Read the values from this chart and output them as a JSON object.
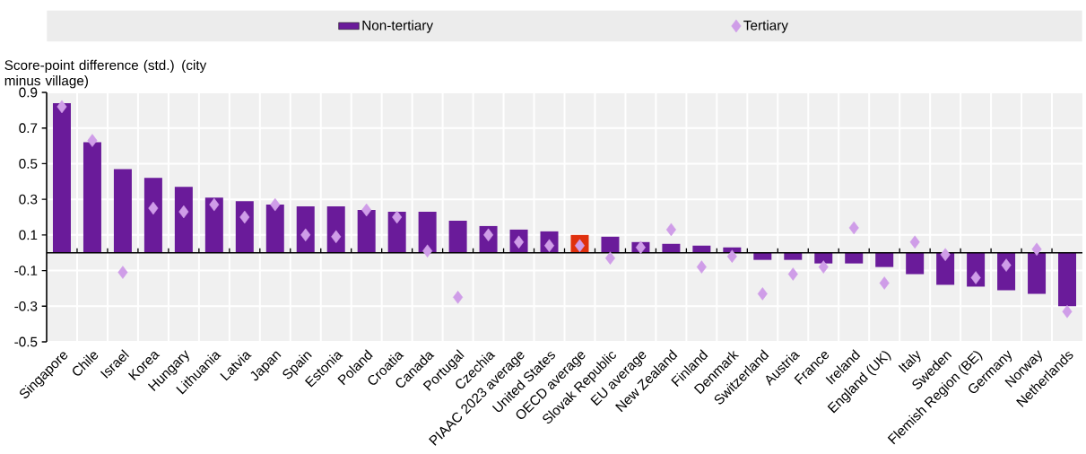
{
  "chart_data": {
    "type": "bar",
    "ylabel": "Score-point difference (std.) (city minus village)",
    "categories": [
      "Singapore",
      "Chile",
      "Israel",
      "Korea",
      "Hungary",
      "Lithuania",
      "Latvia",
      "Japan",
      "Spain",
      "Estonia",
      "Poland",
      "Croatia",
      "Canada",
      "Portugal",
      "Czechia",
      "PIAAC 2023 average",
      "United States",
      "OECD average",
      "Slovak Republic",
      "EU average",
      "New Zealand",
      "Finland",
      "Denmark",
      "Switzerland",
      "Austria",
      "France",
      "Ireland",
      "England (UK)",
      "Italy",
      "Sweden",
      "Flemish Region (BE)",
      "Germany",
      "Norway",
      "Netherlands"
    ],
    "series": [
      {
        "name": "Non-tertiary",
        "colors": [
          "#6a1b9a",
          "#6a1b9a",
          "#6a1b9a",
          "#6a1b9a",
          "#6a1b9a",
          "#6a1b9a",
          "#6a1b9a",
          "#6a1b9a",
          "#6a1b9a",
          "#6a1b9a",
          "#6a1b9a",
          "#6a1b9a",
          "#6a1b9a",
          "#6a1b9a",
          "#6a1b9a",
          "#6a1b9a",
          "#6a1b9a",
          "#e0300e",
          "#6a1b9a",
          "#6a1b9a",
          "#6a1b9a",
          "#6a1b9a",
          "#6a1b9a",
          "#6a1b9a",
          "#6a1b9a",
          "#6a1b9a",
          "#6a1b9a",
          "#6a1b9a",
          "#6a1b9a",
          "#6a1b9a",
          "#6a1b9a",
          "#6a1b9a",
          "#6a1b9a",
          "#6a1b9a"
        ],
        "values": [
          0.84,
          0.62,
          0.47,
          0.42,
          0.37,
          0.31,
          0.29,
          0.27,
          0.26,
          0.26,
          0.24,
          0.23,
          0.23,
          0.18,
          0.15,
          0.13,
          0.12,
          0.1,
          0.09,
          0.06,
          0.05,
          0.04,
          0.03,
          -0.04,
          -0.04,
          -0.06,
          -0.06,
          -0.08,
          -0.12,
          -0.18,
          -0.19,
          -0.21,
          -0.23,
          -0.3
        ]
      },
      {
        "name": "Tertiary",
        "type": "scatter",
        "color": "#cf9de8",
        "marker": "diamond",
        "values": [
          0.82,
          0.63,
          -0.11,
          0.25,
          0.23,
          0.27,
          0.2,
          0.27,
          0.1,
          0.09,
          0.24,
          0.2,
          0.01,
          -0.25,
          0.1,
          0.06,
          0.04,
          0.04,
          -0.03,
          0.03,
          0.13,
          -0.08,
          -0.02,
          -0.23,
          -0.12,
          -0.08,
          0.14,
          -0.17,
          0.06,
          -0.01,
          -0.14,
          -0.07,
          0.02,
          -0.33
        ]
      }
    ],
    "ylim": [
      -0.5,
      0.9
    ],
    "yticks": [
      -0.5,
      -0.3,
      -0.1,
      0.1,
      0.3,
      0.5,
      0.7,
      0.9
    ],
    "grid": true,
    "legend": "top"
  }
}
